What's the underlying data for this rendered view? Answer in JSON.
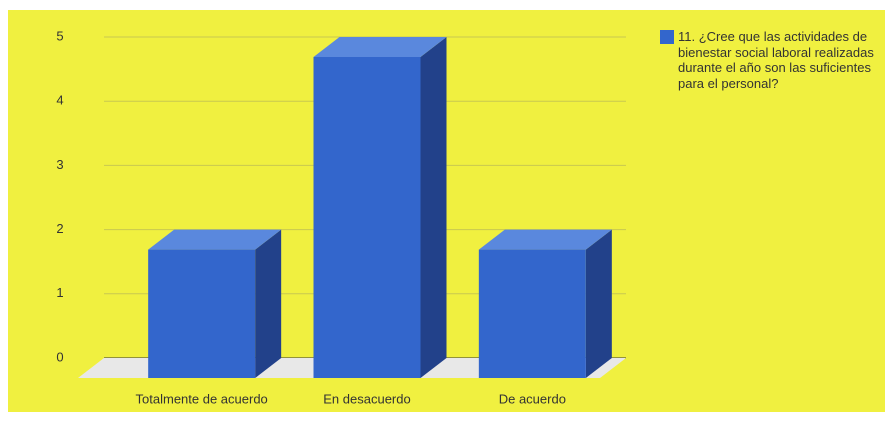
{
  "chart_data": {
    "type": "bar3d",
    "categories": [
      "Totalmente de acuerdo",
      "En desacuerdo",
      "De acuerdo"
    ],
    "series": [
      {
        "name": "11. ¿Cree que las actividades de bienestar social laboral realizadas durante el año son las suficientes para el personal?",
        "color": "#3366cc",
        "values": [
          2,
          5,
          2
        ]
      }
    ],
    "ylim": [
      0,
      5
    ],
    "yticks": [
      0,
      1,
      2,
      3,
      4,
      5
    ],
    "grid": true,
    "legend": "right"
  }
}
